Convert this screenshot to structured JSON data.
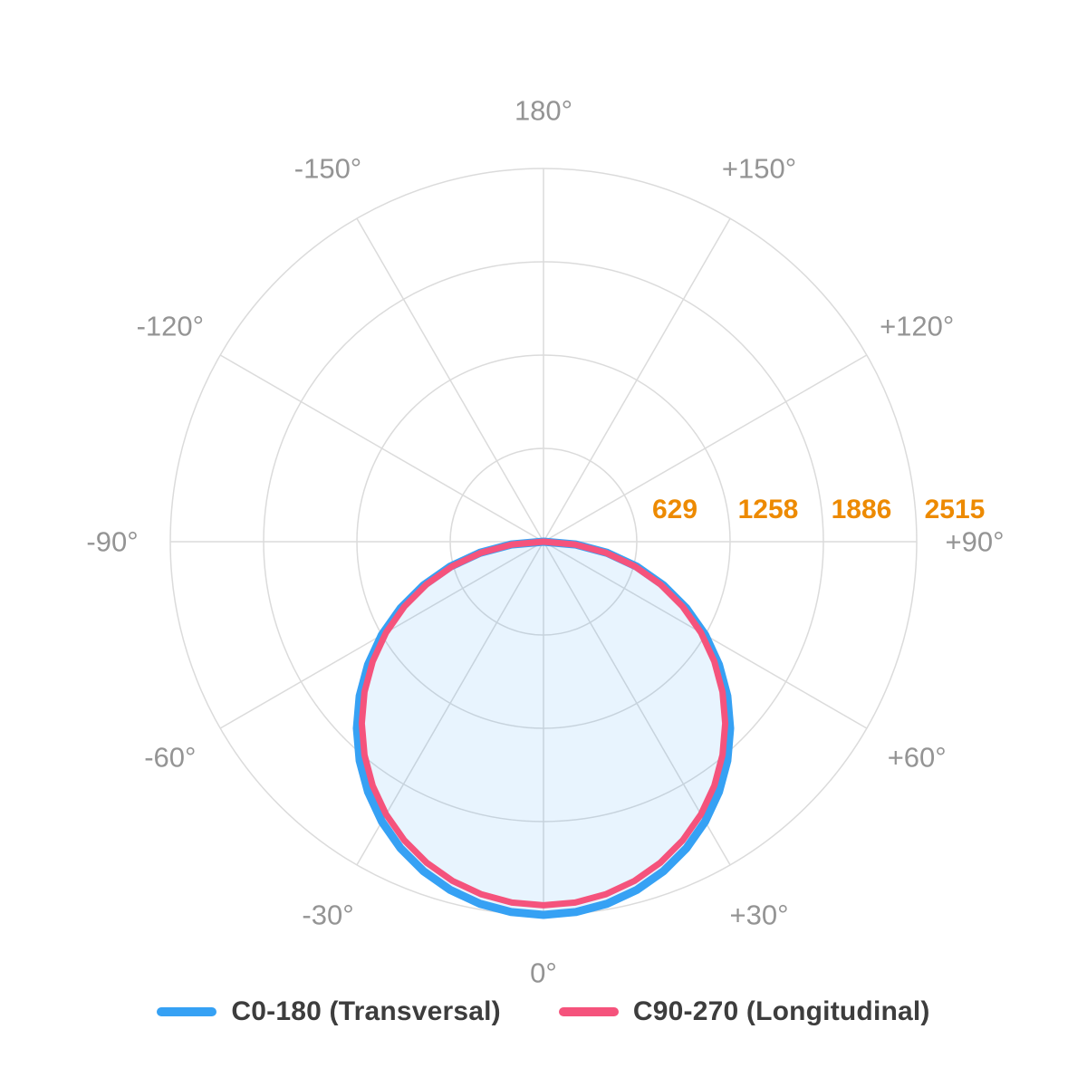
{
  "chart_data": {
    "type": "polar",
    "title": "",
    "orientation": {
      "zero_at": "bottom",
      "positive_direction": "clockwise-to-right",
      "units": "degrees"
    },
    "rmax": 2515,
    "grid": true,
    "grid_color": "#dbdbdb",
    "background": "#ffffff",
    "axis_label_color": "#949494",
    "radial_tick_color": "#ed8a00",
    "radial_ticks": [
      629,
      1258,
      1886,
      2515
    ],
    "angle_ticks": [
      {
        "angle": 180,
        "label": "180°"
      },
      {
        "angle": -150,
        "label": "-150°"
      },
      {
        "angle": 150,
        "label": "+150°"
      },
      {
        "angle": -120,
        "label": "-120°"
      },
      {
        "angle": 120,
        "label": "+120°"
      },
      {
        "angle": -90,
        "label": "-90°"
      },
      {
        "angle": 90,
        "label": "+90°"
      },
      {
        "angle": -60,
        "label": "-60°"
      },
      {
        "angle": 60,
        "label": "+60°"
      },
      {
        "angle": -30,
        "label": "-30°"
      },
      {
        "angle": 30,
        "label": "+30°"
      },
      {
        "angle": 0,
        "label": "0°"
      }
    ],
    "legend_position": "bottom",
    "series": [
      {
        "name": "C0-180 (Transversal)",
        "color": "#36a1f4",
        "fill": "rgba(33,150,243,0.10)",
        "stroke_width": 9,
        "peak": 2515,
        "points": [
          [
            -90,
            0
          ],
          [
            -85,
            219
          ],
          [
            -80,
            437
          ],
          [
            -75,
            651
          ],
          [
            -70,
            860
          ],
          [
            -65,
            1063
          ],
          [
            -60,
            1258
          ],
          [
            -55,
            1443
          ],
          [
            -50,
            1617
          ],
          [
            -45,
            1778
          ],
          [
            -40,
            1927
          ],
          [
            -35,
            2060
          ],
          [
            -30,
            2178
          ],
          [
            -25,
            2279
          ],
          [
            -20,
            2363
          ],
          [
            -15,
            2429
          ],
          [
            -10,
            2477
          ],
          [
            -5,
            2505
          ],
          [
            0,
            2515
          ],
          [
            5,
            2505
          ],
          [
            10,
            2477
          ],
          [
            15,
            2429
          ],
          [
            20,
            2363
          ],
          [
            25,
            2279
          ],
          [
            30,
            2178
          ],
          [
            35,
            2060
          ],
          [
            40,
            1927
          ],
          [
            45,
            1778
          ],
          [
            50,
            1617
          ],
          [
            55,
            1443
          ],
          [
            60,
            1258
          ],
          [
            65,
            1063
          ],
          [
            70,
            860
          ],
          [
            75,
            651
          ],
          [
            80,
            437
          ],
          [
            85,
            219
          ],
          [
            90,
            0
          ]
        ]
      },
      {
        "name": "C90-270 (Longitudinal)",
        "color": "#f5537c",
        "fill": "none",
        "stroke_width": 7,
        "peak": 2450,
        "points": [
          [
            -90,
            0
          ],
          [
            -85,
            214
          ],
          [
            -80,
            425
          ],
          [
            -75,
            634
          ],
          [
            -70,
            838
          ],
          [
            -65,
            1035
          ],
          [
            -60,
            1225
          ],
          [
            -55,
            1405
          ],
          [
            -50,
            1575
          ],
          [
            -45,
            1732
          ],
          [
            -40,
            1877
          ],
          [
            -35,
            2007
          ],
          [
            -30,
            2122
          ],
          [
            -25,
            2220
          ],
          [
            -20,
            2302
          ],
          [
            -15,
            2367
          ],
          [
            -10,
            2413
          ],
          [
            -5,
            2441
          ],
          [
            0,
            2450
          ],
          [
            5,
            2441
          ],
          [
            10,
            2413
          ],
          [
            15,
            2367
          ],
          [
            20,
            2302
          ],
          [
            25,
            2220
          ],
          [
            30,
            2122
          ],
          [
            35,
            2007
          ],
          [
            40,
            1877
          ],
          [
            45,
            1732
          ],
          [
            50,
            1575
          ],
          [
            55,
            1405
          ],
          [
            60,
            1225
          ],
          [
            65,
            1035
          ],
          [
            70,
            838
          ],
          [
            75,
            634
          ],
          [
            80,
            425
          ],
          [
            85,
            214
          ],
          [
            90,
            0
          ]
        ]
      }
    ]
  }
}
